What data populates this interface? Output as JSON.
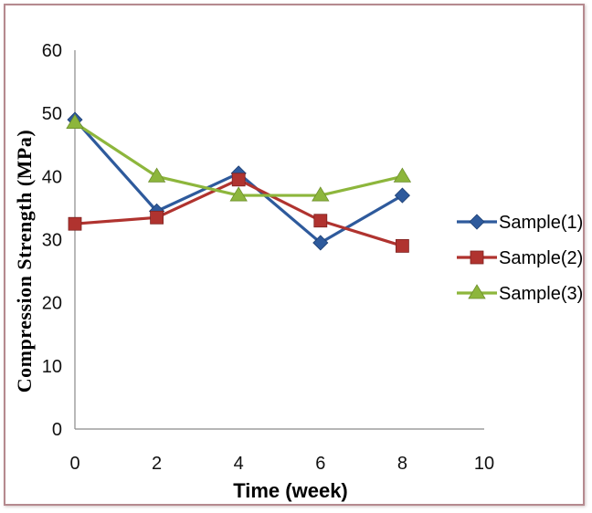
{
  "chart_data": {
    "type": "line",
    "xlabel": "Time (week)",
    "ylabel": "Compression Strength (MPa)",
    "xlim": [
      0,
      10
    ],
    "ylim": [
      0,
      60
    ],
    "xticks": [
      "0",
      "2",
      "4",
      "6",
      "8",
      "10"
    ],
    "yticks": [
      "0",
      "10",
      "20",
      "30",
      "40",
      "50",
      "60"
    ],
    "grid": false,
    "legend_position": "right",
    "series": [
      {
        "name": "Sample(1)",
        "color": "#2e5a9c",
        "marker": "diamond",
        "x": [
          0,
          2,
          4,
          6,
          8
        ],
        "values": [
          49,
          34.5,
          40.5,
          29.5,
          37
        ]
      },
      {
        "name": "Sample(2)",
        "color": "#b0332f",
        "marker": "square",
        "x": [
          0,
          2,
          4,
          6,
          8
        ],
        "values": [
          32.5,
          33.5,
          39.5,
          33,
          29
        ]
      },
      {
        "name": "Sample(3)",
        "color": "#8db63c",
        "marker": "triangle",
        "x": [
          0,
          2,
          4,
          6,
          8
        ],
        "values": [
          48.5,
          40,
          37,
          37,
          40
        ]
      }
    ]
  }
}
